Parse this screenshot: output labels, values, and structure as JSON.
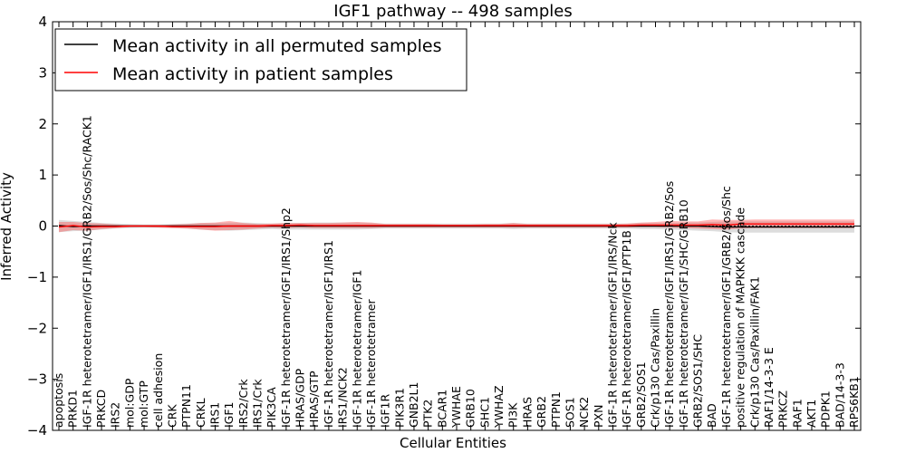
{
  "chart_data": {
    "type": "line",
    "title": "IGF1 pathway -- 498 samples",
    "xlabel": "Cellular Entities",
    "ylabel": "Inferred Activity",
    "ylim": [
      -4,
      4
    ],
    "yticks": [
      {
        "value": -4,
        "label": "−4"
      },
      {
        "value": -3,
        "label": "−3"
      },
      {
        "value": -2,
        "label": "−2"
      },
      {
        "value": -1,
        "label": "−1"
      },
      {
        "value": 0,
        "label": "0"
      },
      {
        "value": 1,
        "label": "1"
      },
      {
        "value": 2,
        "label": "2"
      },
      {
        "value": 3,
        "label": "3"
      },
      {
        "value": 4,
        "label": "4"
      }
    ],
    "grid": false,
    "legend_position": "top-left",
    "categories": [
      "apoptosis",
      "PRKD1",
      "IGF-1R heterotetramer/IGF1/IRS1/GRB2/Sos/Shc/RACK1",
      "PRKCD",
      "IRS2",
      "mol:GDP",
      "mol:GTP",
      "cell adhesion",
      "CRK",
      "PTPN11",
      "CRKL",
      "IRS1",
      "IGF1",
      "IRS2/Crk",
      "IRS1/Crk",
      "PIK3CA",
      "IGF-1R heterotetramer/IGF1/IRS1/Shp2",
      "HRAS/GDP",
      "HRAS/GTP",
      "IGF-1R heterotetramer/IGF1/IRS1",
      "IRS1/NCK2",
      "IGF-1R heterotetramer/IGF1",
      "IGF-1R heterotetramer",
      "IGF1R",
      "PIK3R1",
      "GNB2L1",
      "PTK2",
      "BCAR1",
      "YWHAE",
      "GRB10",
      "SHC1",
      "YWHAZ",
      "PI3K",
      "HRAS",
      "GRB2",
      "PTPN1",
      "SOS1",
      "NCK2",
      "PXN",
      "IGF-1R heterotetramer/IGF1/IRS/Nck",
      "IGF-1R heterotetramer/IGF1/PTP1B",
      "GRB2/SOS1",
      "Crk/p130 Cas/Paxillin",
      "IGF-1R heterotetramer/IGF1/IRS1/GRB2/Sos",
      "IGF-1R heterotetramer/IGF1/SHC/GRB10",
      "GRB2/SOS1/SHC",
      "BAD",
      "IGF-1R heterotetramer/IGF1/GRB2/Sos/Shc",
      "positive regulation of MAPKKK cascade",
      "Crk/p130 Cas/Paxillin/FAK1",
      "RAF1/14-3-3 E",
      "PRKCZ",
      "RAF1",
      "AKT1",
      "PDPK1",
      "BAD/14-3-3",
      "RPS6KB1"
    ],
    "series": [
      {
        "name": "Mean activity in all permuted samples",
        "color": "#000000",
        "values": [
          0.01,
          -0.01,
          0.0,
          0.0,
          0.0,
          0.0,
          0.0,
          0.0,
          0.0,
          0.0,
          0.0,
          0.0,
          0.0,
          0.0,
          0.0,
          0.0,
          0.0,
          0.0,
          0.0,
          0.0,
          0.0,
          0.0,
          0.0,
          0.0,
          0.0,
          0.0,
          0.0,
          0.0,
          0.0,
          0.0,
          0.0,
          0.0,
          0.0,
          0.0,
          0.0,
          0.0,
          0.0,
          0.0,
          0.0,
          0.0,
          0.0,
          0.0,
          0.0,
          0.0,
          0.0,
          0.0,
          -0.01,
          -0.02,
          -0.02,
          -0.02,
          -0.02,
          -0.02,
          -0.02,
          -0.02,
          -0.02,
          -0.02,
          -0.02
        ],
        "band_upper": [
          0.12,
          0.1,
          0.08,
          0.06,
          0.05,
          0.04,
          0.03,
          0.03,
          0.04,
          0.05,
          0.06,
          0.06,
          0.07,
          0.07,
          0.06,
          0.05,
          0.06,
          0.06,
          0.07,
          0.07,
          0.07,
          0.07,
          0.06,
          0.05,
          0.05,
          0.05,
          0.05,
          0.05,
          0.05,
          0.05,
          0.05,
          0.05,
          0.06,
          0.05,
          0.05,
          0.05,
          0.05,
          0.05,
          0.05,
          0.05,
          0.05,
          0.06,
          0.06,
          0.06,
          0.07,
          0.07,
          0.08,
          0.09,
          0.09,
          0.09,
          0.09,
          0.09,
          0.09,
          0.09,
          0.09,
          0.09,
          0.09
        ],
        "band_lower": [
          -0.12,
          -0.1,
          -0.09,
          -0.07,
          -0.05,
          -0.04,
          -0.03,
          -0.03,
          -0.04,
          -0.05,
          -0.07,
          -0.08,
          -0.09,
          -0.08,
          -0.07,
          -0.06,
          -0.07,
          -0.07,
          -0.07,
          -0.07,
          -0.07,
          -0.07,
          -0.06,
          -0.05,
          -0.05,
          -0.05,
          -0.05,
          -0.05,
          -0.05,
          -0.05,
          -0.05,
          -0.05,
          -0.06,
          -0.05,
          -0.05,
          -0.05,
          -0.05,
          -0.05,
          -0.05,
          -0.05,
          -0.05,
          -0.06,
          -0.06,
          -0.07,
          -0.08,
          -0.09,
          -0.1,
          -0.12,
          -0.13,
          -0.13,
          -0.13,
          -0.13,
          -0.13,
          -0.13,
          -0.13,
          -0.13,
          -0.13
        ]
      },
      {
        "name": "Mean activity in patient samples",
        "color": "#ff0000",
        "values": [
          -0.02,
          0.01,
          -0.02,
          -0.01,
          -0.01,
          0.0,
          0.0,
          0.0,
          -0.01,
          -0.01,
          -0.01,
          -0.01,
          0.0,
          0.0,
          0.0,
          0.01,
          0.01,
          0.02,
          0.01,
          0.01,
          0.01,
          0.01,
          0.01,
          0.01,
          0.01,
          0.01,
          0.01,
          0.01,
          0.01,
          0.01,
          0.01,
          0.01,
          0.01,
          0.01,
          0.01,
          0.01,
          0.01,
          0.01,
          0.01,
          0.01,
          0.01,
          0.02,
          0.02,
          0.02,
          0.02,
          0.02,
          0.03,
          0.02,
          0.04,
          0.04,
          0.04,
          0.04,
          0.04,
          0.04,
          0.04,
          0.04,
          0.04
        ],
        "band_upper": [
          0.08,
          0.08,
          0.06,
          0.05,
          0.03,
          0.02,
          0.02,
          0.02,
          0.03,
          0.04,
          0.06,
          0.07,
          0.1,
          0.06,
          0.04,
          0.05,
          0.06,
          0.06,
          0.06,
          0.06,
          0.07,
          0.08,
          0.07,
          0.04,
          0.04,
          0.04,
          0.04,
          0.03,
          0.03,
          0.03,
          0.04,
          0.04,
          0.06,
          0.04,
          0.04,
          0.04,
          0.04,
          0.04,
          0.04,
          0.04,
          0.05,
          0.07,
          0.08,
          0.1,
          0.09,
          0.09,
          0.13,
          0.12,
          0.12,
          0.13,
          0.13,
          0.13,
          0.13,
          0.13,
          0.13,
          0.13,
          0.13
        ],
        "band_lower": [
          -0.12,
          -0.08,
          -0.09,
          -0.06,
          -0.04,
          -0.02,
          -0.02,
          -0.03,
          -0.04,
          -0.05,
          -0.07,
          -0.09,
          -0.08,
          -0.07,
          -0.05,
          -0.03,
          -0.04,
          -0.03,
          -0.04,
          -0.04,
          -0.04,
          -0.04,
          -0.04,
          -0.03,
          -0.03,
          -0.03,
          -0.03,
          -0.03,
          -0.03,
          -0.03,
          -0.03,
          -0.03,
          -0.03,
          -0.03,
          -0.03,
          -0.03,
          -0.03,
          -0.03,
          -0.03,
          -0.03,
          -0.03,
          -0.02,
          -0.02,
          -0.03,
          -0.04,
          -0.05,
          -0.06,
          -0.07,
          -0.05,
          -0.04,
          -0.04,
          -0.04,
          -0.04,
          -0.04,
          -0.04,
          -0.04,
          -0.04
        ]
      }
    ]
  }
}
